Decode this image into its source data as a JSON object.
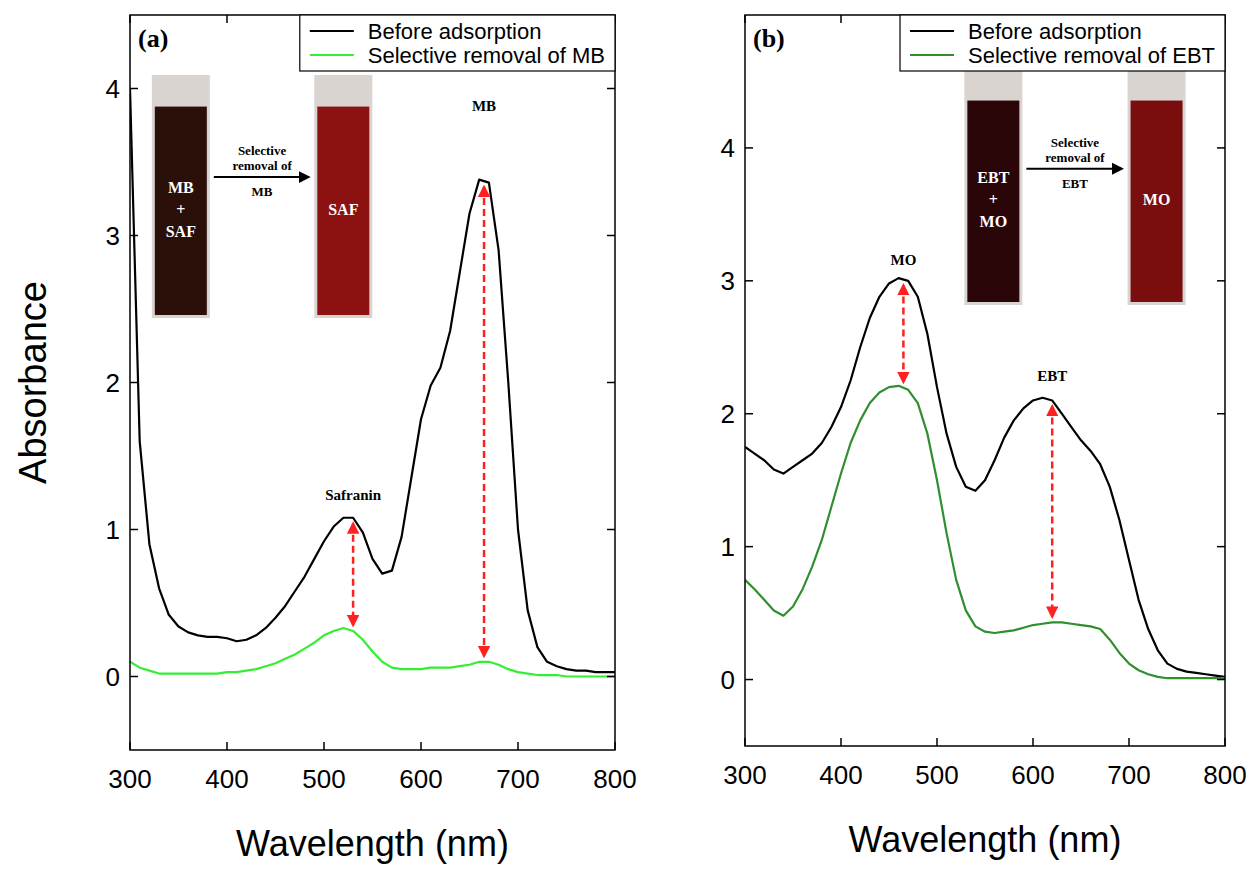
{
  "chart_data": [
    {
      "type": "line",
      "label": "(a)",
      "x_label": "Wavelength (nm)",
      "y_label": "Absorbance",
      "x": [
        300,
        310,
        320,
        330,
        340,
        350,
        360,
        370,
        380,
        390,
        400,
        410,
        420,
        430,
        440,
        450,
        460,
        470,
        480,
        490,
        500,
        510,
        520,
        530,
        540,
        550,
        560,
        570,
        580,
        590,
        600,
        610,
        620,
        630,
        640,
        650,
        660,
        670,
        680,
        690,
        700,
        710,
        720,
        730,
        740,
        750,
        760,
        770,
        780,
        790,
        800
      ],
      "series": [
        {
          "name": "Before adsorption",
          "color": "#000000",
          "values": [
            4.0,
            1.6,
            0.9,
            0.6,
            0.42,
            0.34,
            0.3,
            0.28,
            0.27,
            0.27,
            0.26,
            0.24,
            0.25,
            0.28,
            0.33,
            0.4,
            0.48,
            0.58,
            0.68,
            0.8,
            0.92,
            1.02,
            1.08,
            1.08,
            0.98,
            0.8,
            0.7,
            0.72,
            0.95,
            1.35,
            1.75,
            1.98,
            2.1,
            2.35,
            2.75,
            3.15,
            3.38,
            3.36,
            2.9,
            2.0,
            1.0,
            0.45,
            0.2,
            0.1,
            0.07,
            0.05,
            0.04,
            0.04,
            0.03,
            0.03,
            0.03
          ]
        },
        {
          "name": "Selective removal of MB",
          "color": "#33ee33",
          "values": [
            0.1,
            0.06,
            0.04,
            0.02,
            0.02,
            0.02,
            0.02,
            0.02,
            0.02,
            0.02,
            0.03,
            0.03,
            0.04,
            0.05,
            0.07,
            0.09,
            0.12,
            0.15,
            0.19,
            0.23,
            0.28,
            0.31,
            0.33,
            0.31,
            0.25,
            0.17,
            0.1,
            0.06,
            0.05,
            0.05,
            0.05,
            0.06,
            0.06,
            0.06,
            0.07,
            0.08,
            0.1,
            0.1,
            0.08,
            0.05,
            0.03,
            0.02,
            0.01,
            0.01,
            0.01,
            0.0,
            0.0,
            0.0,
            0.0,
            0.0,
            0.0
          ]
        }
      ],
      "xlim": [
        300,
        800
      ],
      "xticks": [
        300,
        400,
        500,
        600,
        700,
        800
      ],
      "ylim": [
        -0.5,
        4.5
      ],
      "yticks": [
        0,
        1,
        2,
        3,
        4
      ],
      "grid": false,
      "legend": "upper right",
      "annotations": [
        {
          "text": "Safranin",
          "x": 530,
          "y": 1.2
        },
        {
          "text": "MB",
          "x": 665,
          "y": 3.85
        }
      ],
      "inset": {
        "before": "MB + SAF",
        "label": "Selective removal of MB",
        "after": "SAF"
      }
    },
    {
      "type": "line",
      "label": "(b)",
      "x_label": "Wavelength (nm)",
      "x": [
        300,
        310,
        320,
        330,
        340,
        350,
        360,
        370,
        380,
        390,
        400,
        410,
        420,
        430,
        440,
        450,
        460,
        470,
        480,
        490,
        500,
        510,
        520,
        530,
        540,
        550,
        560,
        570,
        580,
        590,
        600,
        610,
        620,
        630,
        640,
        650,
        660,
        670,
        680,
        690,
        700,
        710,
        720,
        730,
        740,
        750,
        760,
        770,
        780,
        790,
        800
      ],
      "series": [
        {
          "name": "Before adsorption",
          "color": "#000000",
          "values": [
            1.75,
            1.7,
            1.65,
            1.58,
            1.55,
            1.6,
            1.65,
            1.7,
            1.78,
            1.9,
            2.05,
            2.25,
            2.5,
            2.72,
            2.88,
            2.98,
            3.02,
            3.0,
            2.88,
            2.6,
            2.2,
            1.85,
            1.6,
            1.45,
            1.42,
            1.5,
            1.65,
            1.82,
            1.95,
            2.04,
            2.1,
            2.12,
            2.1,
            2.0,
            1.9,
            1.8,
            1.72,
            1.62,
            1.45,
            1.2,
            0.9,
            0.6,
            0.38,
            0.22,
            0.12,
            0.08,
            0.06,
            0.05,
            0.04,
            0.03,
            0.02
          ]
        },
        {
          "name": "Selective removal of EBT",
          "color": "#2f8f2f",
          "values": [
            0.75,
            0.68,
            0.6,
            0.52,
            0.48,
            0.55,
            0.68,
            0.85,
            1.05,
            1.3,
            1.55,
            1.78,
            1.95,
            2.08,
            2.16,
            2.2,
            2.21,
            2.18,
            2.08,
            1.85,
            1.5,
            1.1,
            0.75,
            0.52,
            0.4,
            0.36,
            0.35,
            0.36,
            0.37,
            0.39,
            0.41,
            0.42,
            0.43,
            0.43,
            0.42,
            0.41,
            0.4,
            0.38,
            0.3,
            0.2,
            0.12,
            0.07,
            0.04,
            0.02,
            0.01,
            0.01,
            0.01,
            0.01,
            0.01,
            0.01,
            0.01
          ]
        }
      ],
      "xlim": [
        300,
        800
      ],
      "xticks": [
        300,
        400,
        500,
        600,
        700,
        800
      ],
      "ylim": [
        -0.5,
        5
      ],
      "yticks": [
        0,
        1,
        2,
        3,
        4
      ],
      "grid": false,
      "legend": "upper right",
      "annotations": [
        {
          "text": "MO",
          "x": 465,
          "y": 3.12
        },
        {
          "text": "EBT",
          "x": 620,
          "y": 2.25
        }
      ],
      "inset": {
        "before": "EBT + MO",
        "label": "Selective removal of EBT",
        "after": "MO"
      }
    }
  ]
}
